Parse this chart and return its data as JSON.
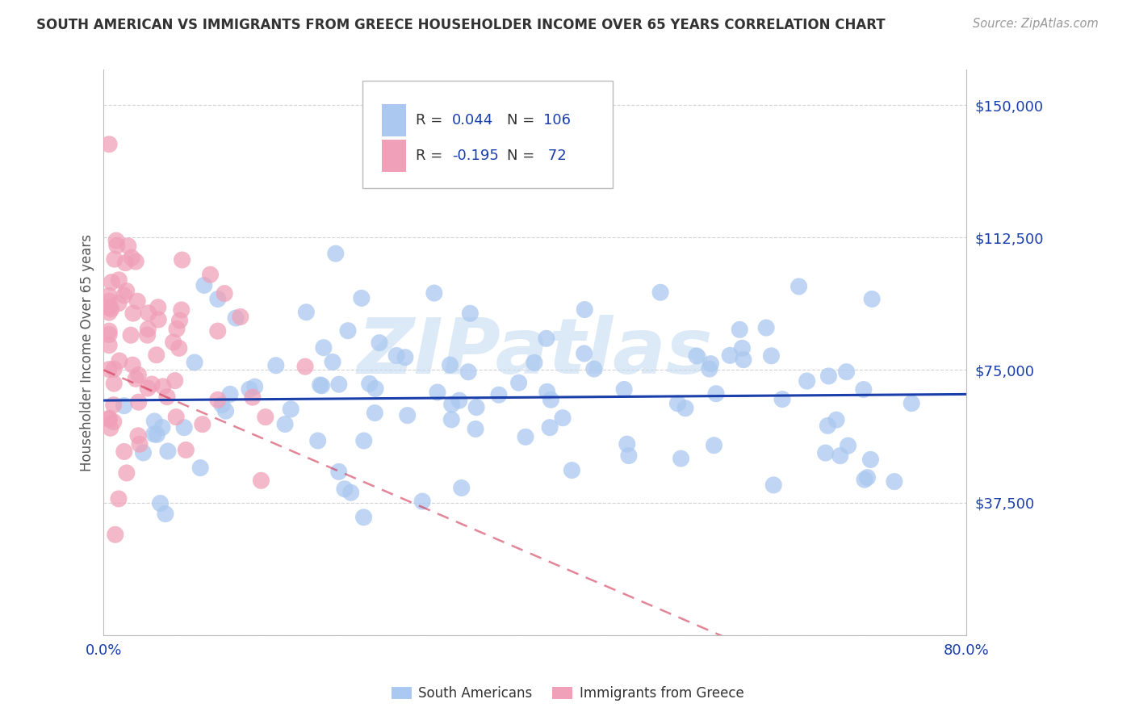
{
  "title": "SOUTH AMERICAN VS IMMIGRANTS FROM GREECE HOUSEHOLDER INCOME OVER 65 YEARS CORRELATION CHART",
  "source": "Source: ZipAtlas.com",
  "ylabel": "Householder Income Over 65 years",
  "xlim": [
    0.0,
    0.8
  ],
  "ylim": [
    0,
    160000
  ],
  "ytick_vals": [
    0,
    37500,
    75000,
    112500,
    150000
  ],
  "ytick_labels": [
    "",
    "$37,500",
    "$75,000",
    "$112,500",
    "$150,000"
  ],
  "xtick_vals": [
    0.0,
    0.1,
    0.2,
    0.3,
    0.4,
    0.5,
    0.6,
    0.7,
    0.8
  ],
  "xtick_labels": [
    "0.0%",
    "",
    "",
    "",
    "",
    "",
    "",
    "",
    "80.0%"
  ],
  "blue_color": "#aac8f0",
  "pink_color": "#f0a0b8",
  "blue_line_color": "#1a3eaa",
  "pink_line_color": "#cc2244",
  "title_color": "#333333",
  "source_color": "#999999",
  "ylabel_color": "#555555",
  "tick_color": "#1a3eaa",
  "grid_color": "#c8c8c8",
  "watermark_text": "ZIPatlas",
  "watermark_color": "#c0d8f0",
  "legend_box_color": "#dddddd",
  "n_blue": 106,
  "n_pink": 72,
  "r_blue": 0.044,
  "r_pink": -0.195,
  "blue_seed": 77,
  "pink_seed": 99
}
